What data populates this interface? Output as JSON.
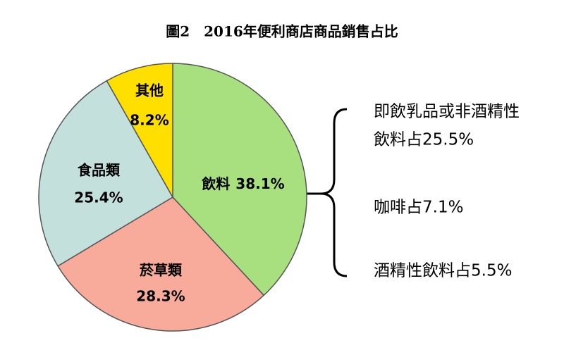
{
  "chart_data": {
    "type": "pie",
    "title": "圖2　2016年便利商店商品銷售占比",
    "categories": [
      "飲料",
      "菸草類",
      "食品類",
      "其他"
    ],
    "values": [
      38.1,
      28.3,
      25.4,
      8.2
    ],
    "value_labels": [
      "38.1%",
      "28.3%",
      "25.4%",
      "8.2%"
    ],
    "colors": [
      "#a9e07f",
      "#f8aa9b",
      "#c4e0dd",
      "#ffdf00"
    ],
    "breakdown": [
      [
        "即飲乳品或非酒精性",
        "飲料占25.5%"
      ],
      [
        "咖啡占7.1%"
      ],
      [
        "酒精性飲料占5.5%"
      ]
    ]
  }
}
